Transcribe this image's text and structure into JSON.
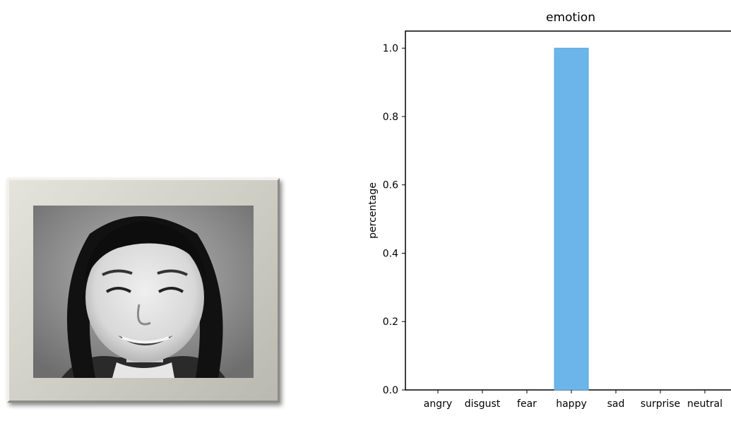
{
  "image": {
    "subject": "face-photo",
    "frame_color": "#cfcfc6"
  },
  "chart_data": {
    "type": "bar",
    "title": "emotion",
    "xlabel": "",
    "ylabel": "percentage",
    "categories": [
      "angry",
      "disgust",
      "fear",
      "happy",
      "sad",
      "surprise",
      "neutral"
    ],
    "values": [
      0,
      0,
      0,
      1.0,
      0,
      0,
      0
    ],
    "ylim": [
      0,
      1.05
    ],
    "yticks": [
      "0.0",
      "0.2",
      "0.4",
      "0.6",
      "0.8",
      "1.0"
    ],
    "bar_color": "#6bb5ea",
    "grid": false
  }
}
